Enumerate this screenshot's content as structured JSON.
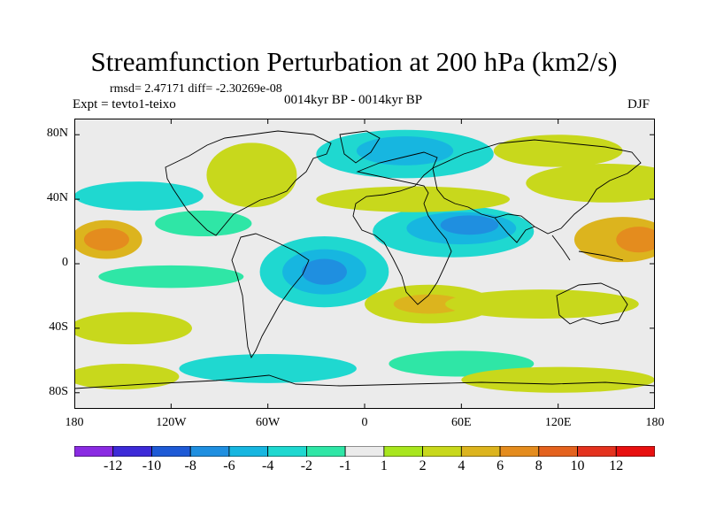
{
  "title": "Streamfunction Perturbation at 200 hPa (km2/s)",
  "stats": "rmsd= 2.47171 diff= -2.30269e-08",
  "experiment": "Expt = tevto1-teixo",
  "period": "0014kyr BP - 0014kyr BP",
  "season": "DJF",
  "axes": {
    "y_ticks": [
      {
        "label": "80N",
        "lat": 80
      },
      {
        "label": "40N",
        "lat": 40
      },
      {
        "label": "0",
        "lat": 0
      },
      {
        "label": "40S",
        "lat": -40
      },
      {
        "label": "80S",
        "lat": -80
      }
    ],
    "x_ticks": [
      {
        "label": "180",
        "lon": -180
      },
      {
        "label": "120W",
        "lon": -120
      },
      {
        "label": "60W",
        "lon": -60
      },
      {
        "label": "0",
        "lon": 0
      },
      {
        "label": "60E",
        "lon": 60
      },
      {
        "label": "120E",
        "lon": 120
      },
      {
        "label": "180",
        "lon": 180
      }
    ],
    "lat_range": [
      -90,
      90
    ],
    "lon_range": [
      -180,
      180
    ]
  },
  "colorbar": {
    "labels": [
      "-12",
      "-10",
      "-8",
      "-6",
      "-4",
      "-2",
      "-1",
      "1",
      "2",
      "4",
      "6",
      "8",
      "10",
      "12"
    ],
    "colors": [
      "#8a2be2",
      "#3d2ad8",
      "#1e5ad6",
      "#1f8fe0",
      "#17b6e0",
      "#1fd8d0",
      "#2fe6a6",
      "#ebebeb",
      "#a8e61e",
      "#c8d81c",
      "#dcb41e",
      "#e48c1e",
      "#e4621e",
      "#e4321e",
      "#e81010"
    ]
  },
  "field": {
    "background": "#ebebeb",
    "blobs": [
      {
        "lon": -160,
        "lat": 15,
        "rx": 22,
        "ry": 12,
        "level": 4
      },
      {
        "lon": -160,
        "lat": 15,
        "rx": 14,
        "ry": 7,
        "level": 6
      },
      {
        "lon": -140,
        "lat": 42,
        "rx": 40,
        "ry": 9,
        "level": -2
      },
      {
        "lon": -120,
        "lat": -8,
        "rx": 45,
        "ry": 7,
        "level": -1
      },
      {
        "lon": -145,
        "lat": -40,
        "rx": 38,
        "ry": 10,
        "level": 2
      },
      {
        "lon": -25,
        "lat": -5,
        "rx": 40,
        "ry": 22,
        "level": -2
      },
      {
        "lon": -25,
        "lat": -5,
        "rx": 26,
        "ry": 14,
        "level": -4
      },
      {
        "lon": -25,
        "lat": -5,
        "rx": 14,
        "ry": 8,
        "level": -6
      },
      {
        "lon": 55,
        "lat": 20,
        "rx": 50,
        "ry": 16,
        "level": -2
      },
      {
        "lon": 60,
        "lat": 22,
        "rx": 34,
        "ry": 10,
        "level": -4
      },
      {
        "lon": 65,
        "lat": 24,
        "rx": 18,
        "ry": 6,
        "level": -6
      },
      {
        "lon": 25,
        "lat": 68,
        "rx": 55,
        "ry": 15,
        "level": -2
      },
      {
        "lon": 25,
        "lat": 70,
        "rx": 30,
        "ry": 9,
        "level": -4
      },
      {
        "lon": 30,
        "lat": 40,
        "rx": 60,
        "ry": 8,
        "level": 2
      },
      {
        "lon": 40,
        "lat": -25,
        "rx": 40,
        "ry": 12,
        "level": 2
      },
      {
        "lon": 40,
        "lat": -25,
        "rx": 22,
        "ry": 6,
        "level": 4
      },
      {
        "lon": 160,
        "lat": 15,
        "rx": 30,
        "ry": 14,
        "level": 4
      },
      {
        "lon": 170,
        "lat": 15,
        "rx": 14,
        "ry": 8,
        "level": 6
      },
      {
        "lon": 110,
        "lat": -25,
        "rx": 60,
        "ry": 9,
        "level": 2
      },
      {
        "lon": 150,
        "lat": 50,
        "rx": 50,
        "ry": 12,
        "level": 2
      },
      {
        "lon": 120,
        "lat": 70,
        "rx": 40,
        "ry": 10,
        "level": 2
      },
      {
        "lon": -70,
        "lat": 55,
        "rx": 28,
        "ry": 20,
        "level": 2
      },
      {
        "lon": -100,
        "lat": 25,
        "rx": 30,
        "ry": 8,
        "level": -1
      },
      {
        "lon": -60,
        "lat": -65,
        "rx": 55,
        "ry": 9,
        "level": -2
      },
      {
        "lon": 60,
        "lat": -62,
        "rx": 45,
        "ry": 8,
        "level": -1
      },
      {
        "lon": 120,
        "lat": -72,
        "rx": 60,
        "ry": 8,
        "level": 2
      },
      {
        "lon": -150,
        "lat": -70,
        "rx": 35,
        "ry": 8,
        "level": 2
      }
    ]
  }
}
